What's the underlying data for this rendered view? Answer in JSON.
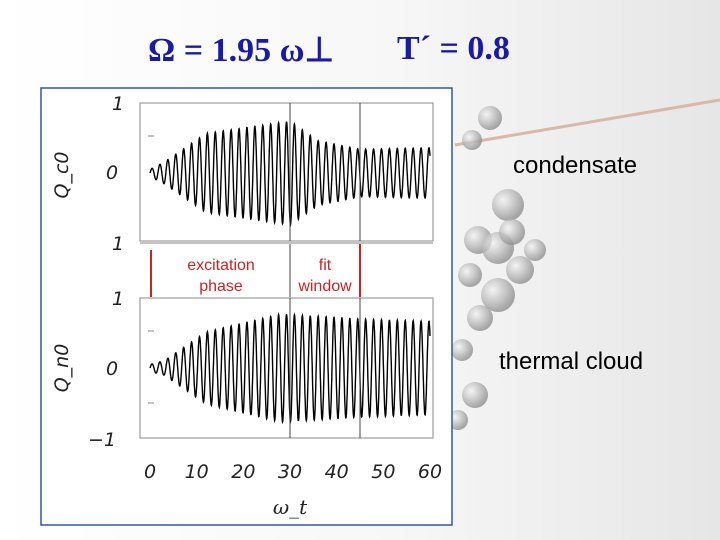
{
  "header": {
    "title_left": "Ω = 1.95 ω⊥",
    "title_right": "T´ = 0.8"
  },
  "labels": {
    "condensate": "condensate",
    "thermal": "thermal cloud"
  },
  "colors": {
    "title": "#1a1aa8",
    "annotation": "#cc2222",
    "trace": "#000000",
    "frame": "#3355aa"
  },
  "chart_data": [
    {
      "type": "line",
      "ylabel": "Q_c0",
      "ylim": [
        -1,
        1
      ],
      "yticks": [
        "1",
        "0"
      ],
      "x_range": [
        0,
        60
      ],
      "signal": {
        "omega": 1.95,
        "amplitude_segments": [
          [
            0,
            0.05
          ],
          [
            3,
            0.15
          ],
          [
            12,
            0.55
          ],
          [
            30,
            0.72
          ],
          [
            36,
            0.45
          ],
          [
            45,
            0.33
          ],
          [
            60,
            0.35
          ]
        ]
      }
    },
    {
      "type": "line",
      "ylabel": "Q_n0",
      "ylim": [
        -1,
        1
      ],
      "yticks": [
        "1",
        "0",
        "−1"
      ],
      "x_range": [
        0,
        60
      ],
      "xticks": [
        "0",
        "10",
        "20",
        "30",
        "40",
        "50",
        "60"
      ],
      "xlabel": "ω_t",
      "signal": {
        "omega": 1.95,
        "amplitude_segments": [
          [
            0,
            0.05
          ],
          [
            3,
            0.1
          ],
          [
            12,
            0.5
          ],
          [
            28,
            0.75
          ],
          [
            36,
            0.72
          ],
          [
            45,
            0.68
          ],
          [
            60,
            0.65
          ]
        ]
      }
    }
  ],
  "annotations": {
    "excitation_line1": "excitation",
    "excitation_line2": "phase",
    "fit_line1": "fit",
    "fit_line2": "window",
    "excitation_range": [
      0,
      30
    ],
    "fit_range": [
      30,
      45
    ]
  }
}
